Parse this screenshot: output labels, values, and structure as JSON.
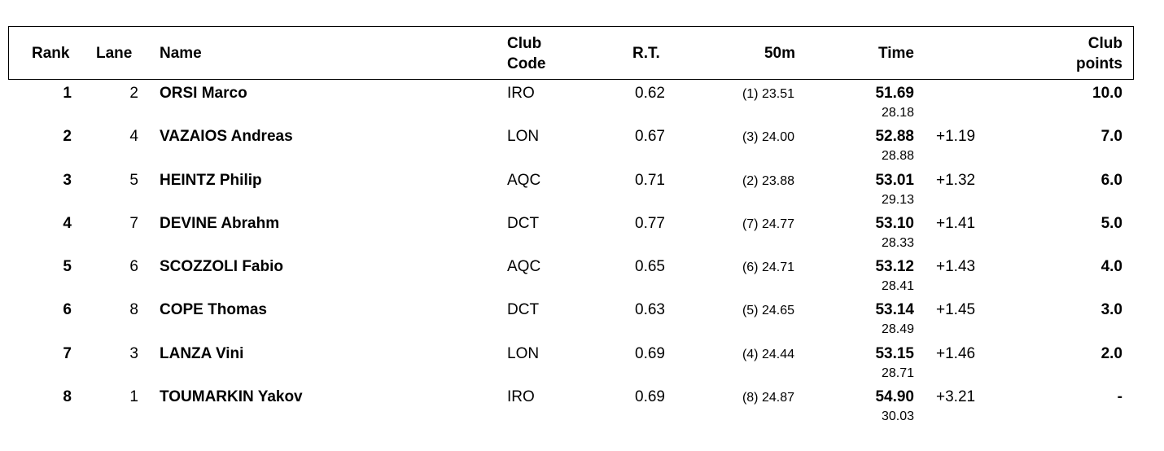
{
  "headers": {
    "rank": "Rank",
    "lane": "Lane",
    "name": "Name",
    "club_code_1": "Club",
    "club_code_2": "Code",
    "rt": "R.T.",
    "fifty": "50m",
    "time": "Time",
    "club_points_1": "Club",
    "club_points_2": "points"
  },
  "rows": [
    {
      "rank": "1",
      "lane": "2",
      "name": "ORSI Marco",
      "club": "IRO",
      "rt": "0.62",
      "fifty": "(1) 23.51",
      "time": "51.69",
      "split": "28.18",
      "diff": "",
      "points": "10.0"
    },
    {
      "rank": "2",
      "lane": "4",
      "name": "VAZAIOS Andreas",
      "club": "LON",
      "rt": "0.67",
      "fifty": "(3) 24.00",
      "time": "52.88",
      "split": "28.88",
      "diff": "+1.19",
      "points": "7.0"
    },
    {
      "rank": "3",
      "lane": "5",
      "name": "HEINTZ Philip",
      "club": "AQC",
      "rt": "0.71",
      "fifty": "(2) 23.88",
      "time": "53.01",
      "split": "29.13",
      "diff": "+1.32",
      "points": "6.0"
    },
    {
      "rank": "4",
      "lane": "7",
      "name": "DEVINE Abrahm",
      "club": "DCT",
      "rt": "0.77",
      "fifty": "(7) 24.77",
      "time": "53.10",
      "split": "28.33",
      "diff": "+1.41",
      "points": "5.0"
    },
    {
      "rank": "5",
      "lane": "6",
      "name": "SCOZZOLI Fabio",
      "club": "AQC",
      "rt": "0.65",
      "fifty": "(6) 24.71",
      "time": "53.12",
      "split": "28.41",
      "diff": "+1.43",
      "points": "4.0"
    },
    {
      "rank": "6",
      "lane": "8",
      "name": "COPE Thomas",
      "club": "DCT",
      "rt": "0.63",
      "fifty": "(5) 24.65",
      "time": "53.14",
      "split": "28.49",
      "diff": "+1.45",
      "points": "3.0"
    },
    {
      "rank": "7",
      "lane": "3",
      "name": "LANZA Vini",
      "club": "LON",
      "rt": "0.69",
      "fifty": "(4) 24.44",
      "time": "53.15",
      "split": "28.71",
      "diff": "+1.46",
      "points": "2.0"
    },
    {
      "rank": "8",
      "lane": "1",
      "name": "TOUMARKIN Yakov",
      "club": "IRO",
      "rt": "0.69",
      "fifty": "(8) 24.87",
      "time": "54.90",
      "split": "30.03",
      "diff": "+3.21",
      "points": "-"
    }
  ]
}
